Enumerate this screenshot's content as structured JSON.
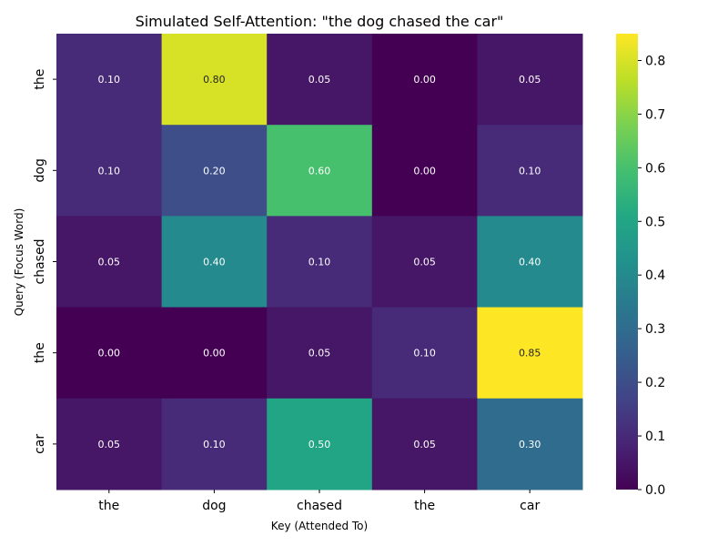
{
  "chart_data": {
    "type": "heatmap",
    "title": "Simulated Self-Attention: \"the dog chased the car\"",
    "xlabel": "Key (Attended To)",
    "ylabel": "Query (Focus Word)",
    "x_categories": [
      "the",
      "dog",
      "chased",
      "the",
      "car"
    ],
    "y_categories": [
      "the",
      "dog",
      "chased",
      "the",
      "car"
    ],
    "values": [
      [
        0.1,
        0.8,
        0.05,
        0.0,
        0.05
      ],
      [
        0.1,
        0.2,
        0.6,
        0.0,
        0.1
      ],
      [
        0.05,
        0.4,
        0.1,
        0.05,
        0.4
      ],
      [
        0.0,
        0.0,
        0.05,
        0.1,
        0.85
      ],
      [
        0.05,
        0.1,
        0.5,
        0.05,
        0.3
      ]
    ],
    "colormap": "viridis",
    "vmin": 0.0,
    "vmax": 0.85,
    "colorbar_ticks": [
      "0.0",
      "0.1",
      "0.2",
      "0.3",
      "0.4",
      "0.5",
      "0.6",
      "0.7",
      "0.8"
    ],
    "annotation_format": "0.00",
    "grid": false
  }
}
